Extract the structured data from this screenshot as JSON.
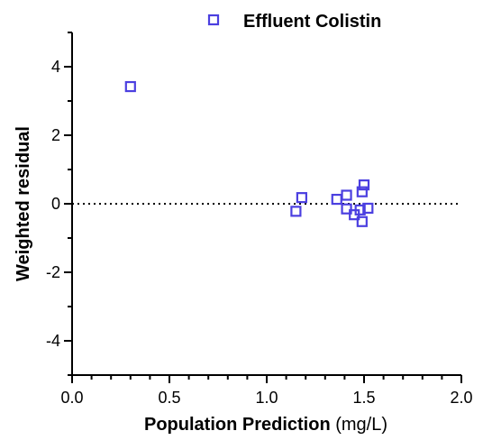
{
  "chart_data": {
    "type": "scatter",
    "title": "",
    "xlabel": "Population Prediction",
    "xlabel_unit": "(mg/L)",
    "ylabel": "Weighted residual",
    "xlim": [
      0,
      2.0
    ],
    "ylim": [
      -5,
      5
    ],
    "x_ticks": [
      0,
      0.5,
      1.0,
      1.5,
      2.0
    ],
    "x_tick_labels": [
      "0.0",
      "0.5",
      "1.0",
      "1.5",
      "2.0"
    ],
    "y_ticks": [
      -4,
      -2,
      0,
      2,
      4
    ],
    "y_tick_labels": [
      "-4",
      "-2",
      "0",
      "2",
      "4"
    ],
    "reference_line": {
      "y": 0,
      "style": "dotted"
    },
    "legend_position": "top",
    "series": [
      {
        "name": "Effluent Colistin",
        "marker": "open-square",
        "color": "#4b3fe0",
        "points": [
          {
            "x": 0.3,
            "y": 3.42
          },
          {
            "x": 1.15,
            "y": -0.22
          },
          {
            "x": 1.18,
            "y": 0.18
          },
          {
            "x": 1.36,
            "y": 0.13
          },
          {
            "x": 1.41,
            "y": 0.25
          },
          {
            "x": 1.41,
            "y": -0.15
          },
          {
            "x": 1.45,
            "y": -0.32
          },
          {
            "x": 1.48,
            "y": -0.18
          },
          {
            "x": 1.49,
            "y": 0.35
          },
          {
            "x": 1.49,
            "y": -0.52
          },
          {
            "x": 1.5,
            "y": 0.55
          },
          {
            "x": 1.52,
            "y": -0.13
          }
        ]
      }
    ]
  }
}
